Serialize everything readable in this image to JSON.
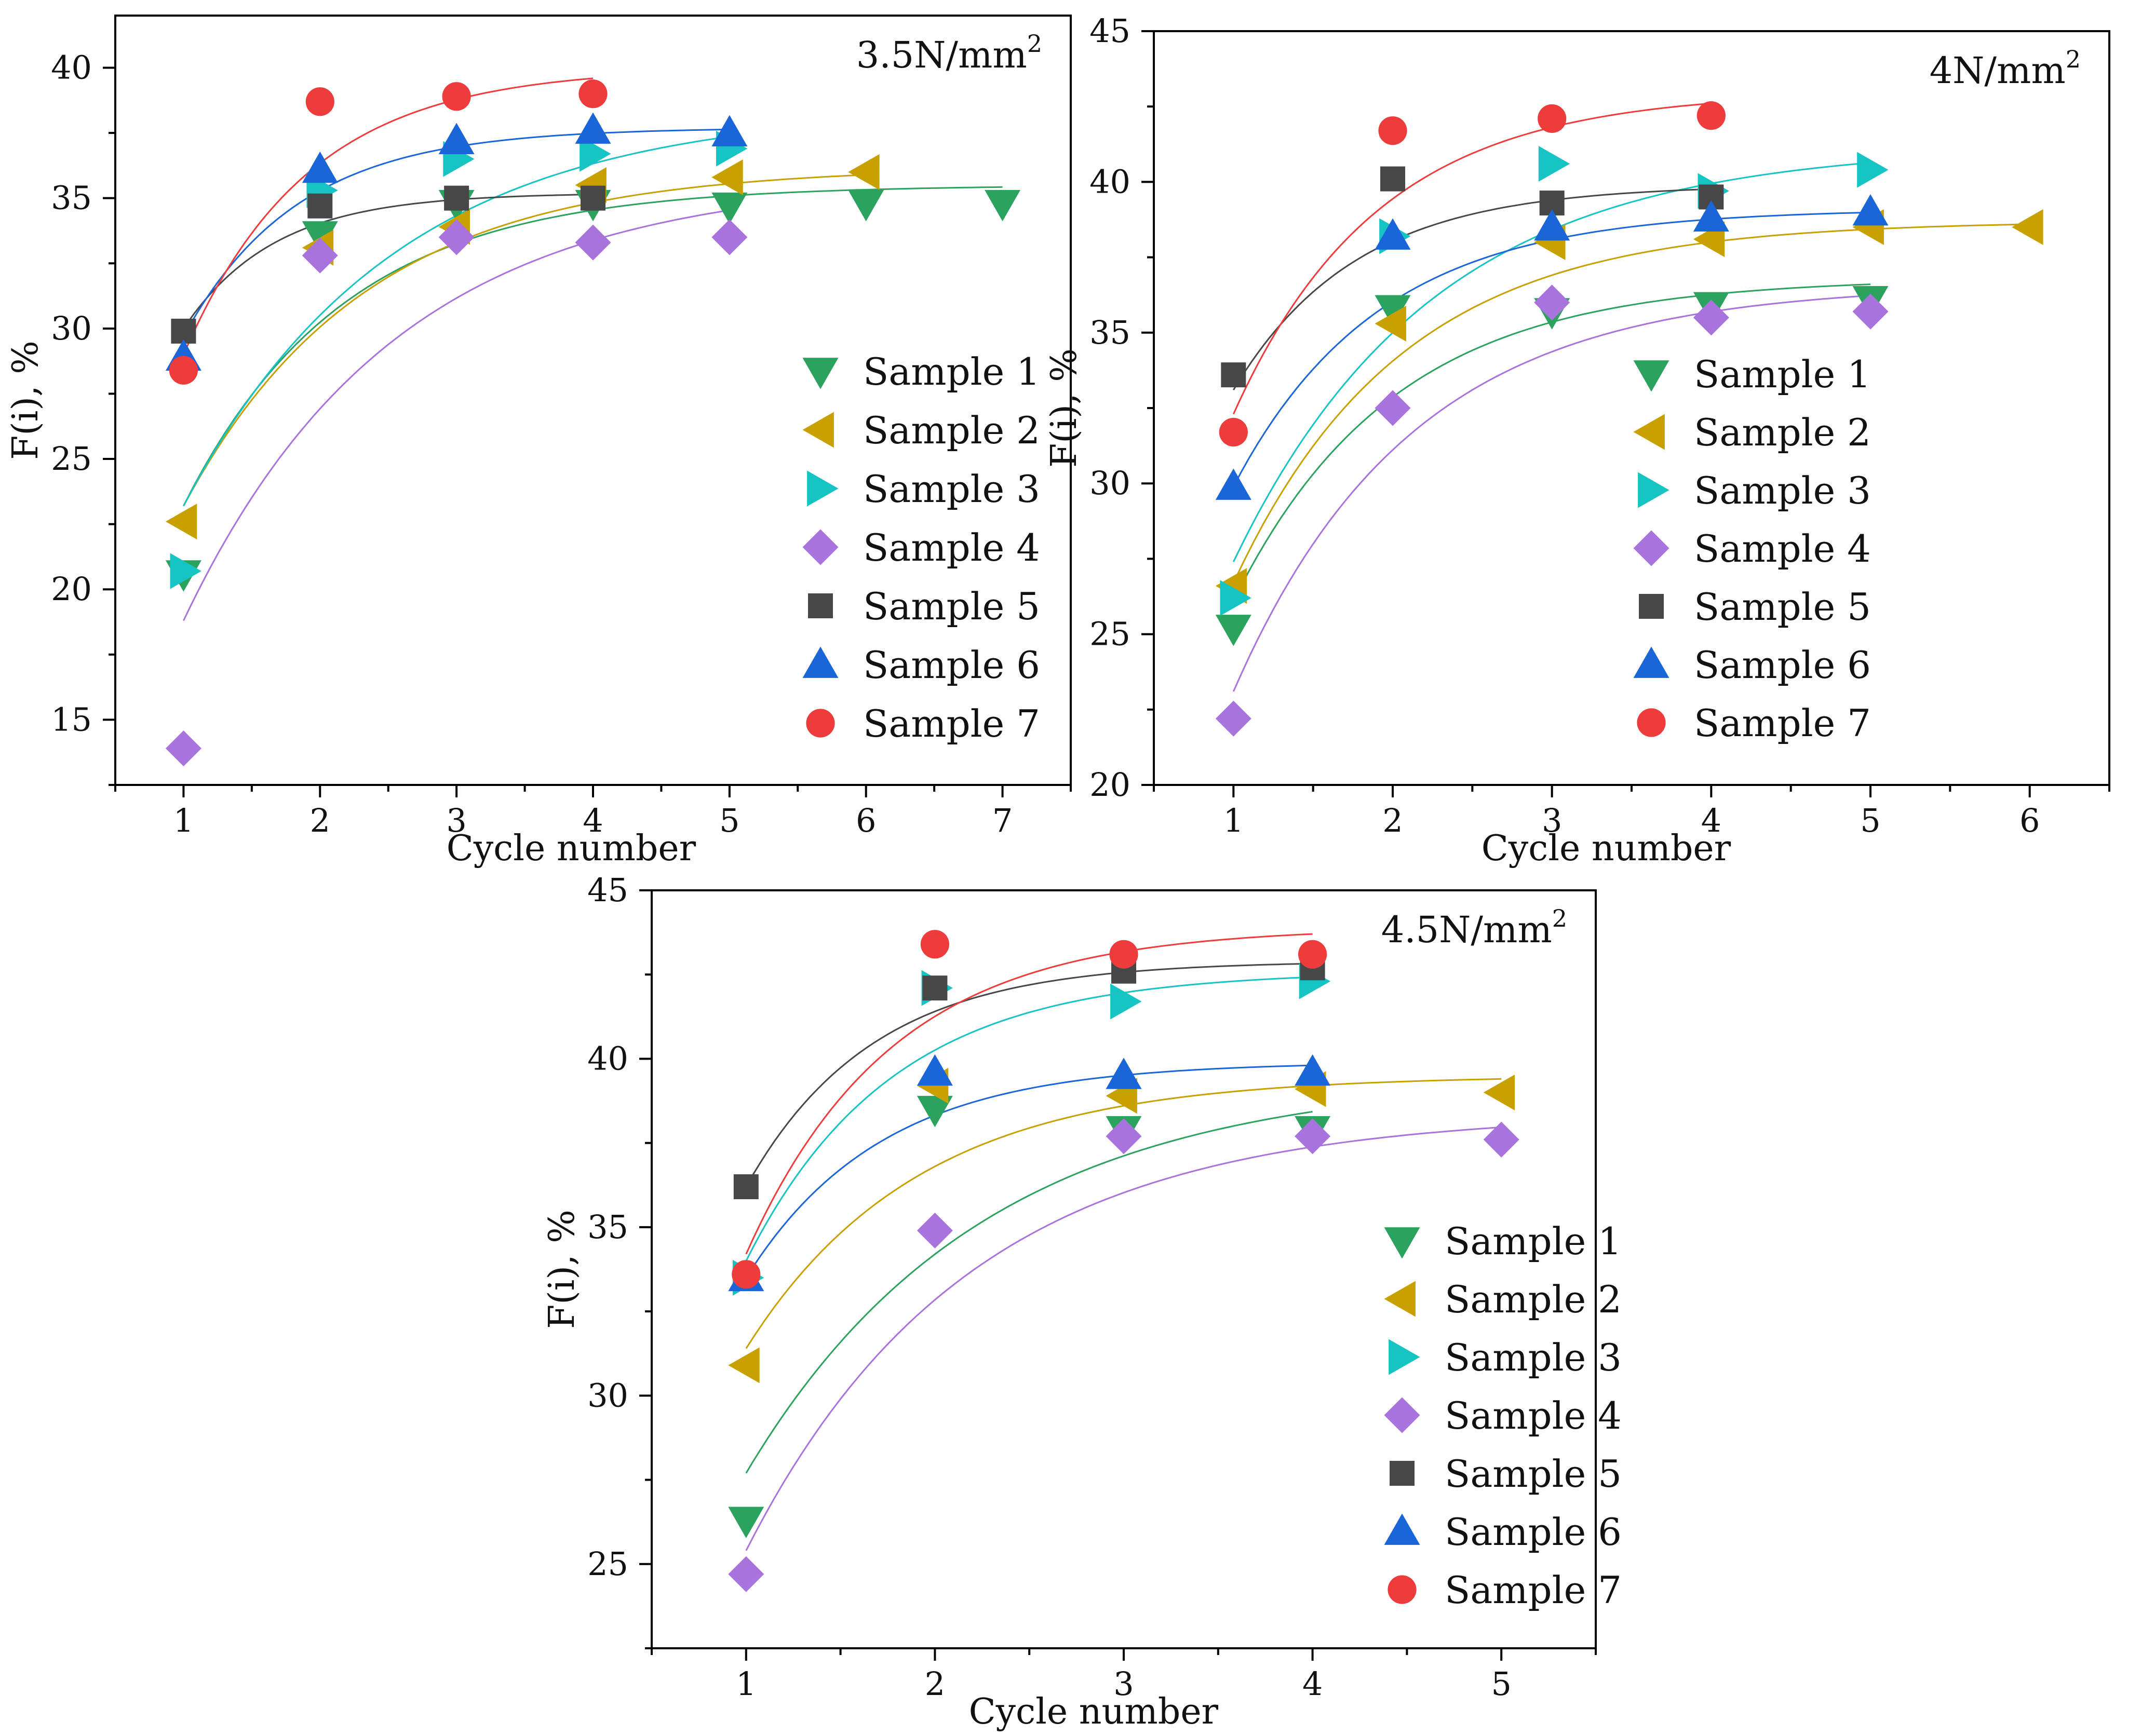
{
  "colors": {
    "Sample 1": "#2ca25f",
    "Sample 2": "#c8a000",
    "Sample 3": "#17c4c4",
    "Sample 4": "#a873dc",
    "Sample 5": "#474747",
    "Sample 6": "#1a66d9",
    "Sample 7": "#ee3b3b",
    "fit_Sample 1": "#2ca25f",
    "fit_Sample 2": "#c8a000",
    "fit_Sample 3": "#17c4c4",
    "fit_Sample 4": "#a873dc",
    "fit_Sample 5": "#474747",
    "fit_Sample 6": "#1a66d9",
    "fit_Sample 7": "#ee3b3b"
  },
  "markers": {
    "Sample 1": "triangle-down",
    "Sample 2": "triangle-left",
    "Sample 3": "triangle-right",
    "Sample 4": "diamond",
    "Sample 5": "square",
    "Sample 6": "triangle-up",
    "Sample 7": "circle"
  },
  "chart_data": [
    {
      "type": "scatter",
      "title": "3.5N/mm",
      "title_sup": "2",
      "xlabel": "Cycle number",
      "ylabel": "F(i), %",
      "xlim": [
        0.5,
        7.5
      ],
      "ylim": [
        12.5,
        42
      ],
      "xticks": [
        1,
        2,
        3,
        4,
        5,
        6,
        7
      ],
      "yticks": [
        15,
        20,
        25,
        30,
        35,
        40
      ],
      "legend": "lower-right",
      "series": [
        {
          "name": "Sample 1",
          "x": [
            1,
            2,
            3,
            4,
            5,
            6,
            7
          ],
          "y": [
            20.6,
            33.6,
            34.8,
            34.8,
            34.7,
            34.8,
            34.8
          ],
          "fit": {
            "a": 35.5,
            "b": 12.3,
            "k": 0.85,
            "x0": 1,
            "x1": 7
          }
        },
        {
          "name": "Sample 2",
          "x": [
            1,
            2,
            3,
            4,
            5,
            6
          ],
          "y": [
            22.6,
            33.1,
            33.9,
            35.5,
            35.8,
            36.0
          ],
          "fit": {
            "a": 36.2,
            "b": 13.0,
            "k": 0.75,
            "x0": 1,
            "x1": 6
          }
        },
        {
          "name": "Sample 3",
          "x": [
            1,
            2,
            3,
            4,
            5
          ],
          "y": [
            20.7,
            35.3,
            36.5,
            36.7,
            36.9
          ],
          "fit": {
            "a": 38.5,
            "b": 15.3,
            "k": 0.65,
            "x0": 1,
            "x1": 5
          }
        },
        {
          "name": "Sample 4",
          "x": [
            1,
            2,
            3,
            4,
            5
          ],
          "y": [
            13.9,
            32.8,
            33.5,
            33.3,
            33.5
          ],
          "fit": {
            "a": 35.8,
            "b": 17.0,
            "k": 0.65,
            "x0": 1,
            "x1": 5
          }
        },
        {
          "name": "Sample 5",
          "x": [
            1,
            2,
            3,
            4
          ],
          "y": [
            29.9,
            34.7,
            35.0,
            35.0
          ],
          "fit": {
            "a": 35.2,
            "b": 5.2,
            "k": 1.5,
            "x0": 1,
            "x1": 4
          }
        },
        {
          "name": "Sample 6",
          "x": [
            1,
            2,
            3,
            4,
            5
          ],
          "y": [
            28.9,
            36.1,
            37.2,
            37.6,
            37.5
          ],
          "fit": {
            "a": 37.7,
            "b": 8.0,
            "k": 1.2,
            "x0": 1,
            "x1": 5
          }
        },
        {
          "name": "Sample 7",
          "x": [
            1,
            2,
            3,
            4
          ],
          "y": [
            28.4,
            38.7,
            38.9,
            39.0
          ],
          "fit": {
            "a": 40.0,
            "b": 11.0,
            "k": 1.1,
            "x0": 1,
            "x1": 4
          }
        }
      ]
    },
    {
      "type": "scatter",
      "title": "4N/mm",
      "title_sup": "2",
      "xlabel": "Cycle number",
      "ylabel": "F(i), %",
      "xlim": [
        0.5,
        6.5
      ],
      "ylim": [
        20,
        45
      ],
      "xticks": [
        1,
        2,
        3,
        4,
        5,
        6
      ],
      "yticks": [
        20,
        25,
        30,
        35,
        40,
        45
      ],
      "legend": "lower-right",
      "series": [
        {
          "name": "Sample 1",
          "x": [
            1,
            2,
            3,
            4,
            5
          ],
          "y": [
            25.2,
            35.8,
            35.7,
            35.9,
            36.1
          ],
          "fit": {
            "a": 36.8,
            "b": 10.7,
            "k": 1.0,
            "x0": 1,
            "x1": 5
          }
        },
        {
          "name": "Sample 2",
          "x": [
            1,
            2,
            3,
            4,
            5,
            6
          ],
          "y": [
            26.6,
            35.3,
            38.0,
            38.1,
            38.5,
            38.5
          ],
          "fit": {
            "a": 38.7,
            "b": 12.0,
            "k": 0.95,
            "x0": 1,
            "x1": 6
          }
        },
        {
          "name": "Sample 3",
          "x": [
            1,
            2,
            3,
            4,
            5
          ],
          "y": [
            26.2,
            38.2,
            40.6,
            39.7,
            40.4
          ],
          "fit": {
            "a": 41.2,
            "b": 13.8,
            "k": 0.8,
            "x0": 1,
            "x1": 5
          }
        },
        {
          "name": "Sample 4",
          "x": [
            1,
            2,
            3,
            4,
            5
          ],
          "y": [
            22.2,
            32.5,
            36.0,
            35.5,
            35.7
          ],
          "fit": {
            "a": 36.6,
            "b": 13.5,
            "k": 0.9,
            "x0": 1,
            "x1": 5
          }
        },
        {
          "name": "Sample 5",
          "x": [
            1,
            2,
            3,
            4
          ],
          "y": [
            33.6,
            40.1,
            39.3,
            39.5
          ],
          "fit": {
            "a": 39.9,
            "b": 6.8,
            "k": 1.3,
            "x0": 1,
            "x1": 4
          }
        },
        {
          "name": "Sample 6",
          "x": [
            1,
            2,
            3,
            4,
            5
          ],
          "y": [
            29.9,
            38.2,
            38.5,
            38.8,
            39.0
          ],
          "fit": {
            "a": 39.1,
            "b": 9.2,
            "k": 1.1,
            "x0": 1,
            "x1": 5
          }
        },
        {
          "name": "Sample 7",
          "x": [
            1,
            2,
            3,
            4
          ],
          "y": [
            31.7,
            41.7,
            42.1,
            42.2
          ],
          "fit": {
            "a": 43.0,
            "b": 10.7,
            "k": 1.1,
            "x0": 1,
            "x1": 4
          }
        }
      ]
    },
    {
      "type": "scatter",
      "title": "4.5N/mm",
      "title_sup": "2",
      "xlabel": "Cycle number",
      "ylabel": "F(i), %",
      "xlim": [
        0.5,
        5.5
      ],
      "ylim": [
        22.5,
        45
      ],
      "xticks": [
        1,
        2,
        3,
        4,
        5
      ],
      "yticks": [
        25,
        30,
        35,
        40,
        45
      ],
      "legend": "lower-right",
      "series": [
        {
          "name": "Sample 1",
          "x": [
            1,
            2,
            3,
            4
          ],
          "y": [
            26.3,
            38.5,
            37.9,
            37.9
          ],
          "fit": {
            "a": 39.5,
            "b": 11.8,
            "k": 0.8,
            "x0": 1,
            "x1": 4
          }
        },
        {
          "name": "Sample 2",
          "x": [
            1,
            2,
            3,
            4,
            5
          ],
          "y": [
            30.9,
            39.2,
            38.9,
            39.1,
            39.0
          ],
          "fit": {
            "a": 39.5,
            "b": 8.1,
            "k": 1.1,
            "x0": 1,
            "x1": 5
          }
        },
        {
          "name": "Sample 3",
          "x": [
            1,
            2,
            3,
            4
          ],
          "y": [
            33.5,
            42.1,
            41.7,
            42.3
          ],
          "fit": {
            "a": 42.6,
            "b": 8.6,
            "k": 1.3,
            "x0": 1,
            "x1": 4
          }
        },
        {
          "name": "Sample 4",
          "x": [
            1,
            2,
            3,
            4,
            5
          ],
          "y": [
            24.7,
            34.9,
            37.7,
            37.7,
            37.6
          ],
          "fit": {
            "a": 38.4,
            "b": 13.0,
            "k": 0.85,
            "x0": 1,
            "x1": 5
          }
        },
        {
          "name": "Sample 5",
          "x": [
            1,
            2,
            3,
            4
          ],
          "y": [
            36.2,
            42.1,
            42.6,
            42.7
          ],
          "fit": {
            "a": 42.9,
            "b": 6.7,
            "k": 1.5,
            "x0": 1,
            "x1": 4
          }
        },
        {
          "name": "Sample 6",
          "x": [
            1,
            2,
            3,
            4
          ],
          "y": [
            33.5,
            39.6,
            39.5,
            39.6
          ],
          "fit": {
            "a": 39.9,
            "b": 6.4,
            "k": 1.4,
            "x0": 1,
            "x1": 4
          }
        },
        {
          "name": "Sample 7",
          "x": [
            1,
            2,
            3,
            4
          ],
          "y": [
            33.6,
            43.4,
            43.1,
            43.1
          ],
          "fit": {
            "a": 43.9,
            "b": 9.7,
            "k": 1.3,
            "x0": 1,
            "x1": 4
          }
        }
      ]
    }
  ]
}
